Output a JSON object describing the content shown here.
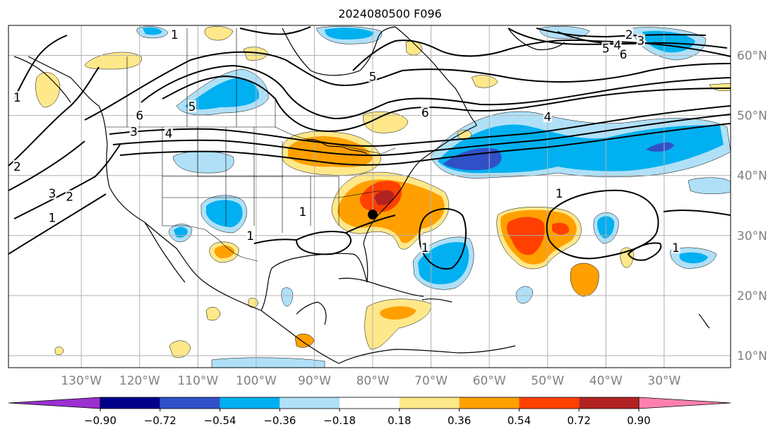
{
  "title": "2024080500 F096",
  "map": {
    "lon_ticks": [
      {
        "lon": -130,
        "label": "130°W"
      },
      {
        "lon": -120,
        "label": "120°W"
      },
      {
        "lon": -110,
        "label": "110°W"
      },
      {
        "lon": -100,
        "label": "100°W"
      },
      {
        "lon": -90,
        "label": "90°W"
      },
      {
        "lon": -80,
        "label": "80°W"
      },
      {
        "lon": -70,
        "label": "70°W"
      },
      {
        "lon": -60,
        "label": "60°W"
      },
      {
        "lon": -50,
        "label": "50°W"
      },
      {
        "lon": -40,
        "label": "40°W"
      },
      {
        "lon": -30,
        "label": "30°W"
      }
    ],
    "lat_ticks": [
      {
        "lat": 60,
        "label": "60°N"
      },
      {
        "lat": 50,
        "label": "50°N"
      },
      {
        "lat": 40,
        "label": "40°N"
      },
      {
        "lat": 30,
        "label": "30°N"
      },
      {
        "lat": 20,
        "label": "20°N"
      },
      {
        "lat": 10,
        "label": "10°N"
      }
    ],
    "colors": {
      "grid": "#b0b0b0",
      "tick_label": "#808080",
      "contour": "#000000",
      "coast": "#000000"
    },
    "storm_marker": {
      "lon": -80.0,
      "lat": 33.5
    }
  },
  "colorbar": {
    "labels": [
      "−0.90",
      "−0.72",
      "−0.54",
      "−0.36",
      "−0.18",
      "0.18",
      "0.36",
      "0.54",
      "0.72",
      "0.90"
    ],
    "under_color": "#9b30d0",
    "over_color": "#ff80b0",
    "colors": [
      "#00008b",
      "#3050c8",
      "#00b0f0",
      "#b0e0f8",
      "#ffffff",
      "#ffe88a",
      "#ffa000",
      "#ff4000",
      "#b22222"
    ]
  },
  "contour_labels": [
    {
      "text": "1",
      "lon": -114,
      "lat": 63.5
    },
    {
      "text": "2",
      "lon": -36,
      "lat": 63.5
    },
    {
      "text": "3",
      "lon": -34,
      "lat": 62.5
    },
    {
      "text": "4",
      "lon": -38,
      "lat": 61.7
    },
    {
      "text": "5",
      "lon": -40,
      "lat": 61.2
    },
    {
      "text": "6",
      "lon": -37,
      "lat": 60.2
    },
    {
      "text": "5",
      "lon": -80,
      "lat": 56.5
    },
    {
      "text": "6",
      "lon": -71,
      "lat": 50.5
    },
    {
      "text": "4",
      "lon": -50,
      "lat": 49.8
    },
    {
      "text": "5",
      "lon": -111,
      "lat": 51.5
    },
    {
      "text": "6",
      "lon": -120,
      "lat": 50
    },
    {
      "text": "3",
      "lon": -121,
      "lat": 47.3
    },
    {
      "text": "4",
      "lon": -115,
      "lat": 47
    },
    {
      "text": "1",
      "lon": -141,
      "lat": 53
    },
    {
      "text": "2",
      "lon": -141,
      "lat": 41.5
    },
    {
      "text": "3",
      "lon": -135,
      "lat": 37
    },
    {
      "text": "2",
      "lon": -132,
      "lat": 36.5
    },
    {
      "text": "1",
      "lon": -135,
      "lat": 33
    },
    {
      "text": "1",
      "lon": -92,
      "lat": 34
    },
    {
      "text": "1",
      "lon": -101,
      "lat": 30
    },
    {
      "text": "1",
      "lon": -71,
      "lat": 28
    },
    {
      "text": "1",
      "lon": -48,
      "lat": 37
    },
    {
      "text": "1",
      "lon": -28,
      "lat": 28
    }
  ]
}
